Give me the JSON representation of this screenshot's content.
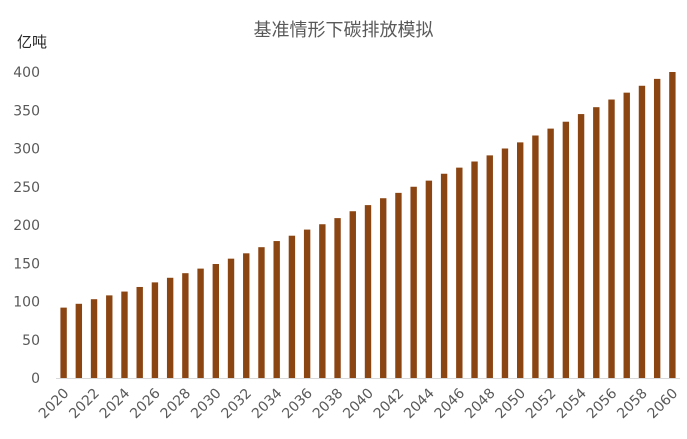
{
  "chart_data": {
    "type": "bar",
    "title": "基准情形下碳排放模拟",
    "ylabel": "亿吨",
    "xlabel": "",
    "ylim": [
      0,
      400
    ],
    "yticks": [
      0,
      50,
      100,
      150,
      200,
      250,
      300,
      350,
      400
    ],
    "grid": false,
    "bar_color": "#8B4513",
    "categories": [
      "2020",
      "2021",
      "2022",
      "2023",
      "2024",
      "2025",
      "2026",
      "2027",
      "2028",
      "2029",
      "2030",
      "2031",
      "2032",
      "2033",
      "2034",
      "2035",
      "2036",
      "2037",
      "2038",
      "2039",
      "2040",
      "2041",
      "2042",
      "2043",
      "2044",
      "2045",
      "2046",
      "2047",
      "2048",
      "2049",
      "2050",
      "2051",
      "2052",
      "2053",
      "2054",
      "2055",
      "2056",
      "2057",
      "2058",
      "2059",
      "2060"
    ],
    "tick_labels": [
      "2020",
      "2022",
      "2024",
      "2026",
      "2028",
      "2030",
      "2032",
      "2034",
      "2036",
      "2038",
      "2040",
      "2042",
      "2044",
      "2046",
      "2048",
      "2050",
      "2052",
      "2054",
      "2056",
      "2058",
      "2060"
    ],
    "values": [
      92,
      97,
      103,
      108,
      113,
      119,
      125,
      131,
      137,
      143,
      149,
      156,
      163,
      171,
      179,
      186,
      194,
      201,
      209,
      218,
      226,
      235,
      242,
      250,
      258,
      267,
      275,
      283,
      291,
      300,
      308,
      317,
      326,
      335,
      345,
      354,
      364,
      373,
      382,
      391,
      400
    ]
  }
}
